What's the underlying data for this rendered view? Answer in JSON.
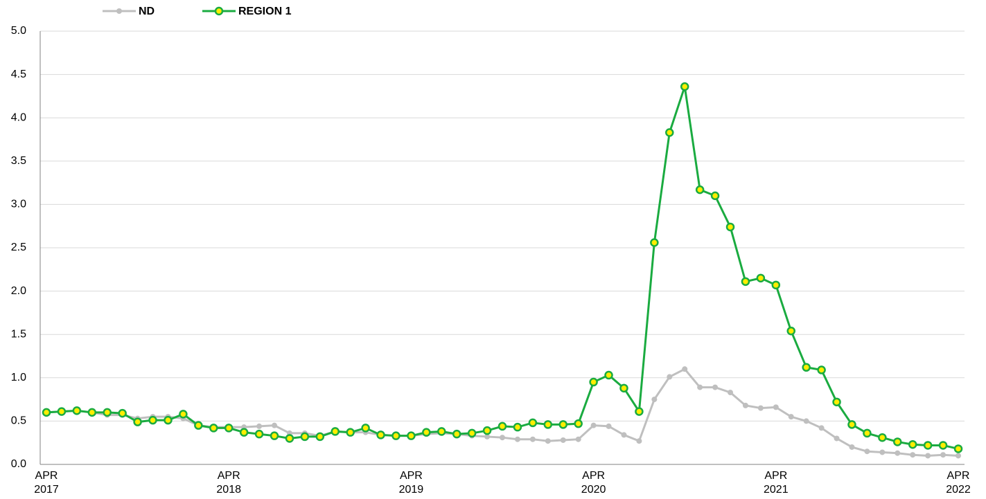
{
  "chart_data": {
    "type": "line",
    "categories": [
      "APR 2017",
      null,
      null,
      null,
      null,
      null,
      null,
      null,
      null,
      null,
      null,
      null,
      "APR 2018",
      null,
      null,
      null,
      null,
      null,
      null,
      null,
      null,
      null,
      null,
      null,
      "APR 2019",
      null,
      null,
      null,
      null,
      null,
      null,
      null,
      null,
      null,
      null,
      null,
      "APR 2020",
      null,
      null,
      null,
      null,
      null,
      null,
      null,
      null,
      null,
      null,
      null,
      "APR 2021",
      null,
      null,
      null,
      null,
      null,
      null,
      null,
      null,
      null,
      null,
      null,
      "APR 2022"
    ],
    "series": [
      {
        "name": "ND",
        "color": "#bfbfbf",
        "values": [
          0.6,
          0.61,
          0.62,
          0.6,
          0.57,
          0.57,
          0.53,
          0.55,
          0.55,
          0.53,
          0.45,
          0.43,
          0.43,
          0.43,
          0.44,
          0.45,
          0.36,
          0.36,
          0.33,
          0.38,
          0.37,
          0.37,
          0.34,
          0.33,
          0.33,
          0.35,
          0.36,
          0.35,
          0.33,
          0.32,
          0.31,
          0.29,
          0.29,
          0.27,
          0.28,
          0.29,
          0.45,
          0.44,
          0.34,
          0.27,
          0.75,
          1.01,
          1.1,
          0.89,
          0.89,
          0.83,
          0.68,
          0.65,
          0.66,
          0.55,
          0.5,
          0.42,
          0.3,
          0.2,
          0.15,
          0.14,
          0.13,
          0.11,
          0.1,
          0.11,
          0.1
        ]
      },
      {
        "name": "REGION 1",
        "color": "#1aab40",
        "values": [
          0.6,
          0.61,
          0.62,
          0.6,
          0.6,
          0.59,
          0.49,
          0.51,
          0.51,
          0.58,
          0.45,
          0.42,
          0.42,
          0.37,
          0.35,
          0.33,
          0.3,
          0.32,
          0.32,
          0.38,
          0.37,
          0.42,
          0.34,
          0.33,
          0.33,
          0.37,
          0.38,
          0.35,
          0.36,
          0.39,
          0.44,
          0.43,
          0.48,
          0.46,
          0.46,
          0.47,
          0.95,
          1.03,
          0.88,
          0.61,
          2.56,
          3.83,
          4.36,
          3.17,
          3.1,
          2.74,
          2.11,
          2.15,
          2.07,
          1.54,
          1.12,
          1.09,
          0.72,
          0.46,
          0.36,
          0.31,
          0.26,
          0.23,
          0.22,
          0.22,
          0.18
        ]
      }
    ],
    "ylim": [
      0,
      5
    ],
    "yticks": [
      {
        "value": 0,
        "label": "0.0"
      },
      {
        "value": 0.5,
        "label": "0.5"
      },
      {
        "value": 1,
        "label": "1.0"
      },
      {
        "value": 1.5,
        "label": "1.5"
      },
      {
        "value": 2,
        "label": "2.0"
      },
      {
        "value": 2.5,
        "label": "2.5"
      },
      {
        "value": 3,
        "label": "3.0"
      },
      {
        "value": 3.5,
        "label": "3.5"
      },
      {
        "value": 4,
        "label": "4.0"
      },
      {
        "value": 4.5,
        "label": "4.5"
      },
      {
        "value": 5,
        "label": "5.0"
      }
    ],
    "grid": true,
    "legend": "top"
  }
}
